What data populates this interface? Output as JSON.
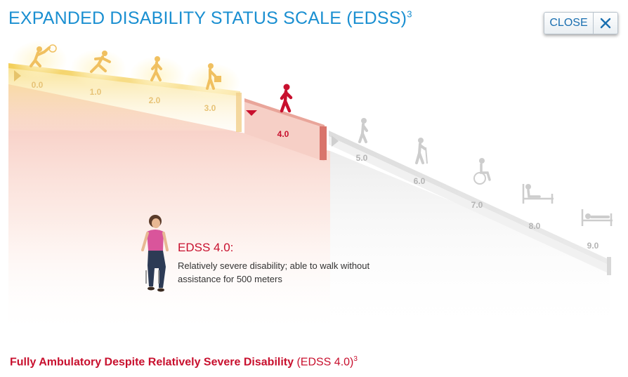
{
  "header": {
    "title": "EXPANDED DISABILITY STATUS SCALE (EDSS)",
    "title_sup": "3"
  },
  "close_button": {
    "label": "CLOSE"
  },
  "scale": {
    "selected": "4.0",
    "steps": [
      "0.0",
      "1.0",
      "2.0",
      "3.0",
      "4.0",
      "5.0",
      "6.0",
      "7.0",
      "8.0",
      "9.0"
    ]
  },
  "icons": {
    "0.0": "tennis-player-icon",
    "1.0": "runner-icon",
    "2.0": "walker-icon",
    "3.0": "person-carrying-bag-icon",
    "4.0": "walking-person-icon",
    "5.0": "slow-walker-icon",
    "6.0": "cane-walker-icon",
    "7.0": "wheelchair-icon",
    "8.0": "bed-sitting-icon",
    "9.0": "bed-lying-icon"
  },
  "description": {
    "heading": "EDSS 4.0:",
    "body": "Relatively severe disability; able to walk without assistance for 500 meters"
  },
  "footer": {
    "bold": "Fully Ambulatory Despite Relatively Severe Disability",
    "normal": "(EDSS 4.0)",
    "sup": "3"
  },
  "colors": {
    "accent_blue": "#1a8fd1",
    "brand_red": "#c8102e",
    "yellow": "#f6d36a",
    "gray": "#c8c8c8"
  }
}
